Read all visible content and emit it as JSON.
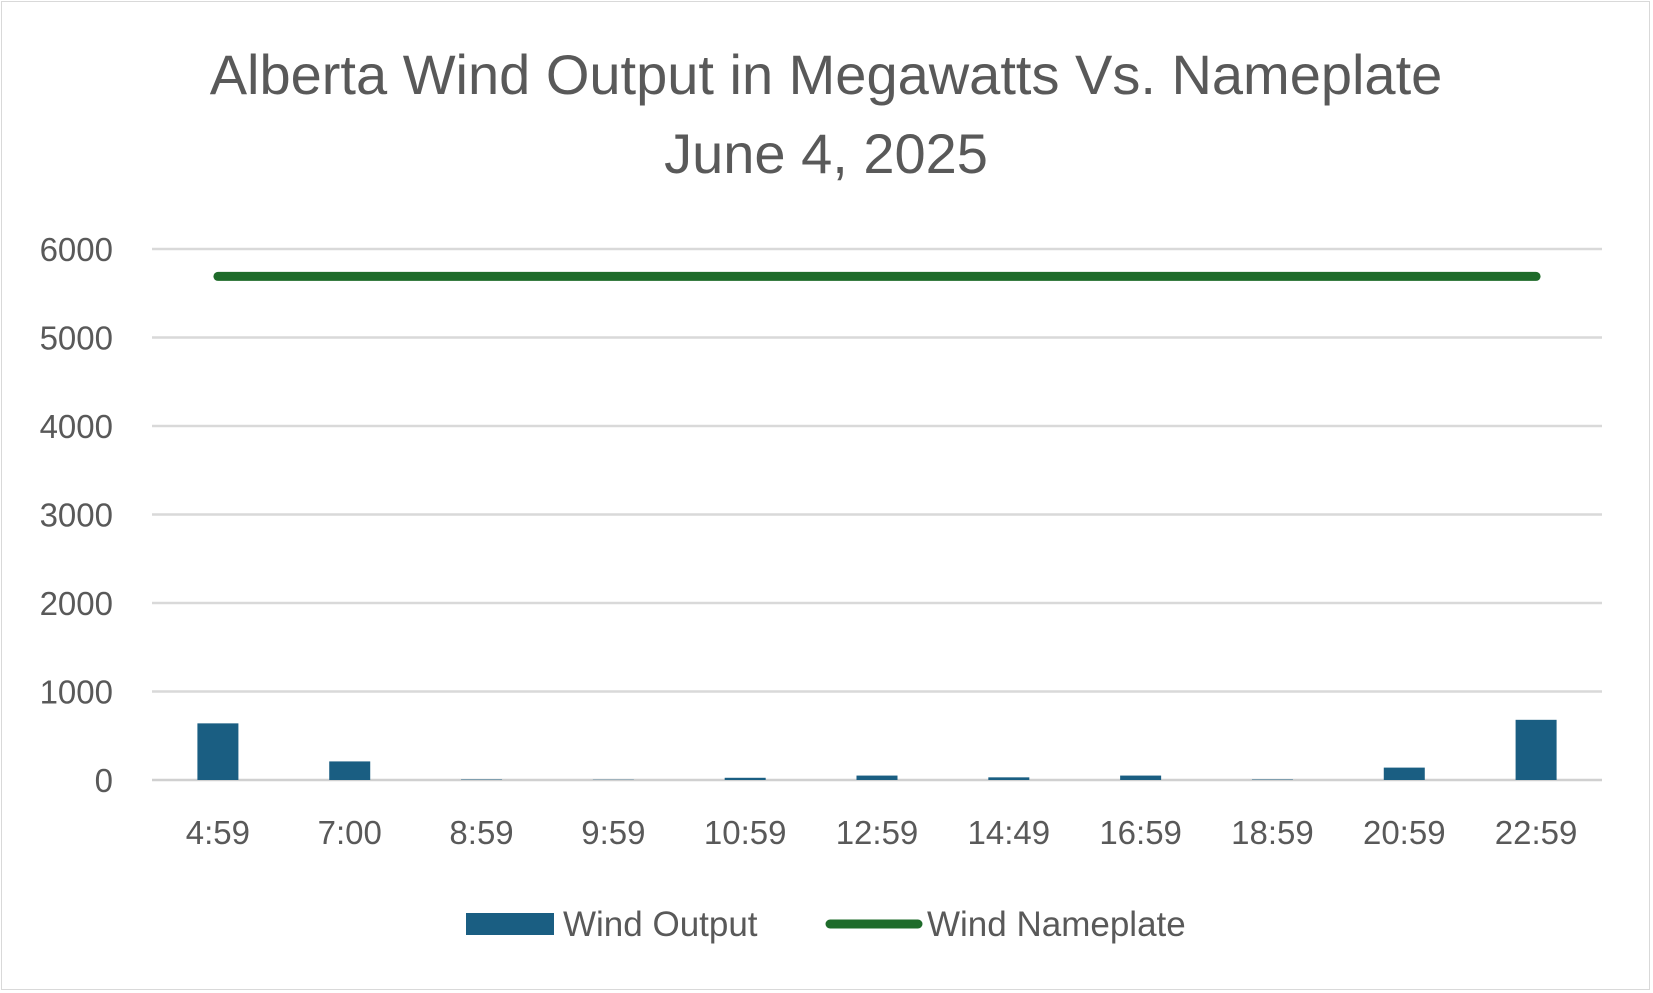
{
  "chart_data": {
    "type": "bar",
    "title": "Alberta Wind Output in Megawatts Vs. Nameplate",
    "subtitle": "June 4, 2025",
    "categories": [
      "4:59",
      "7:00",
      "8:59",
      "9:59",
      "10:59",
      "12:59",
      "14:49",
      "16:59",
      "18:59",
      "20:59",
      "22:59"
    ],
    "series": [
      {
        "name": "Wind Output",
        "kind": "bar",
        "color": "#1a5e82",
        "values": [
          640,
          210,
          5,
          3,
          25,
          50,
          30,
          50,
          5,
          140,
          680
        ]
      },
      {
        "name": "Wind Nameplate",
        "kind": "line",
        "color": "#1e6b2a",
        "values": [
          5690,
          5690,
          5690,
          5690,
          5690,
          5690,
          5690,
          5690,
          5690,
          5690,
          5690
        ]
      }
    ],
    "ylim": [
      0,
      6000
    ],
    "yticks": [
      0,
      1000,
      2000,
      3000,
      4000,
      5000,
      6000
    ],
    "xlabel": "",
    "ylabel": "",
    "grid": true,
    "legend": "bottom"
  }
}
